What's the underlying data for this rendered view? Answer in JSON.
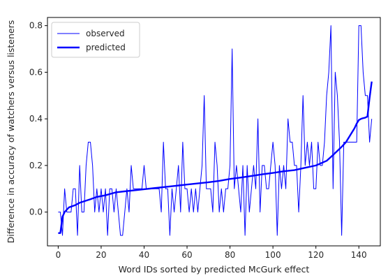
{
  "chart_data": {
    "type": "line",
    "xlabel": "Word IDs sorted by predicted McGurk effect",
    "ylabel": "Difference in accuracy of watchers versus listeners",
    "xlim": [
      -5,
      150
    ],
    "ylim": [
      -0.145,
      0.835
    ],
    "xticks": [
      0,
      20,
      40,
      60,
      80,
      100,
      120,
      140
    ],
    "yticks": [
      0.0,
      0.2,
      0.4,
      0.6,
      0.8
    ],
    "xtick_labels": [
      "0",
      "20",
      "40",
      "60",
      "80",
      "100",
      "120",
      "140"
    ],
    "ytick_labels": [
      "0.0",
      "0.2",
      "0.4",
      "0.6",
      "0.8"
    ],
    "grid": false,
    "legend": "top-left",
    "series": [
      {
        "name": "observed",
        "color": "#0000ff",
        "style": "thin",
        "x": [
          0,
          1,
          2,
          3,
          4,
          5,
          6,
          7,
          8,
          9,
          10,
          11,
          12,
          13,
          14,
          15,
          16,
          17,
          18,
          19,
          20,
          21,
          22,
          23,
          24,
          25,
          26,
          27,
          28,
          29,
          30,
          31,
          32,
          33,
          34,
          35,
          36,
          37,
          38,
          39,
          40,
          41,
          42,
          43,
          44,
          45,
          46,
          47,
          48,
          49,
          50,
          51,
          52,
          53,
          54,
          55,
          56,
          57,
          58,
          59,
          60,
          61,
          62,
          63,
          64,
          65,
          66,
          67,
          68,
          69,
          70,
          71,
          72,
          73,
          74,
          75,
          76,
          77,
          78,
          79,
          80,
          81,
          82,
          83,
          84,
          85,
          86,
          87,
          88,
          89,
          90,
          91,
          92,
          93,
          94,
          95,
          96,
          97,
          98,
          99,
          100,
          101,
          102,
          103,
          104,
          105,
          106,
          107,
          108,
          109,
          110,
          111,
          112,
          113,
          114,
          115,
          116,
          117,
          118,
          119,
          120,
          121,
          122,
          123,
          124,
          125,
          126,
          127,
          128,
          129,
          130,
          131,
          132,
          133,
          134,
          135,
          136,
          137,
          138,
          139,
          140,
          141,
          142,
          143,
          144,
          145,
          146
        ],
        "values": [
          0.0,
          0.0,
          -0.1,
          0.1,
          0.0,
          0.0,
          0.0,
          0.1,
          0.1,
          -0.1,
          0.2,
          0.0,
          0.0,
          0.2,
          0.3,
          0.3,
          0.2,
          0.0,
          0.1,
          0.0,
          0.1,
          0.0,
          0.1,
          -0.1,
          0.1,
          0.1,
          0.0,
          0.1,
          0.0,
          -0.1,
          -0.1,
          0.0,
          0.1,
          0.0,
          0.2,
          0.1,
          0.1,
          0.1,
          0.1,
          0.1,
          0.2,
          0.1,
          0.1,
          0.1,
          0.1,
          0.1,
          0.1,
          0.1,
          0.0,
          0.3,
          0.1,
          0.1,
          -0.1,
          0.1,
          0.0,
          0.1,
          0.2,
          0.0,
          0.3,
          0.1,
          0.1,
          0.0,
          0.1,
          0.0,
          0.1,
          0.0,
          0.1,
          0.2,
          0.5,
          0.1,
          0.1,
          0.1,
          0.0,
          0.3,
          0.2,
          0.0,
          0.1,
          0.0,
          0.1,
          0.1,
          0.2,
          0.7,
          0.1,
          0.2,
          0.1,
          0.0,
          0.2,
          -0.1,
          0.2,
          0.0,
          0.1,
          0.2,
          0.1,
          0.4,
          0.0,
          0.2,
          0.2,
          0.1,
          0.1,
          0.2,
          0.3,
          0.2,
          -0.1,
          0.2,
          0.1,
          0.2,
          0.1,
          0.4,
          0.3,
          0.3,
          0.2,
          0.2,
          0.0,
          0.2,
          0.5,
          0.2,
          0.3,
          0.2,
          0.3,
          0.1,
          0.1,
          0.3,
          0.2,
          0.2,
          0.3,
          0.5,
          0.6,
          0.8,
          0.1,
          0.6,
          0.5,
          0.3,
          -0.1,
          0.3,
          0.3,
          0.3,
          0.3,
          0.3,
          0.3,
          0.3,
          0.8,
          0.8,
          0.6,
          0.5,
          0.5,
          0.3,
          0.4
        ],
        "marker": "none"
      },
      {
        "name": "predicted",
        "color": "#0000ff",
        "style": "thick",
        "x": [
          0,
          1,
          2,
          3,
          5,
          8,
          10,
          15,
          18,
          22,
          27,
          30,
          40,
          45,
          55,
          60,
          70,
          75,
          80,
          85,
          90,
          95,
          100,
          105,
          110,
          115,
          120,
          125,
          128,
          132,
          134,
          136,
          138,
          139,
          140,
          141,
          142,
          143,
          144,
          145,
          146
        ],
        "values": [
          -0.09,
          -0.09,
          -0.02,
          0.0,
          0.02,
          0.03,
          0.04,
          0.055,
          0.065,
          0.072,
          0.085,
          0.088,
          0.098,
          0.103,
          0.113,
          0.118,
          0.128,
          0.134,
          0.142,
          0.148,
          0.155,
          0.162,
          0.168,
          0.175,
          0.18,
          0.19,
          0.2,
          0.22,
          0.245,
          0.28,
          0.3,
          0.33,
          0.36,
          0.38,
          0.395,
          0.4,
          0.403,
          0.405,
          0.41,
          0.49,
          0.56
        ],
        "marker": "none"
      }
    ]
  }
}
